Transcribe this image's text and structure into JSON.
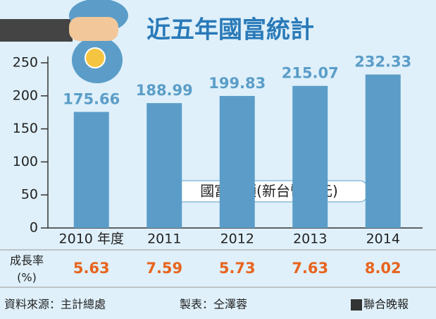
{
  "chart_data": {
    "type": "bar",
    "title": "近五年國富統計",
    "categories": [
      "2010 年度",
      "2011",
      "2012",
      "2013",
      "2014"
    ],
    "series": [
      {
        "name": "國富毛額(新台幣兆元)",
        "color": "#5b9dc8",
        "values": [
          175.66,
          188.99,
          199.83,
          215.07,
          232.33
        ]
      }
    ],
    "value_label_color": "#5b9dc8",
    "ylim": [
      0,
      250
    ],
    "yticks": [
      0,
      50,
      100,
      150,
      200,
      250
    ],
    "grid": false,
    "growth": {
      "label": [
        "成長率",
        "(%)"
      ],
      "color": "#e8641e",
      "values": [
        5.63,
        7.59,
        5.73,
        7.63,
        8.02
      ]
    },
    "source": "資料來源：主計總處",
    "credit": "製表：仝澤蓉",
    "publisher": "聯合晚報"
  }
}
